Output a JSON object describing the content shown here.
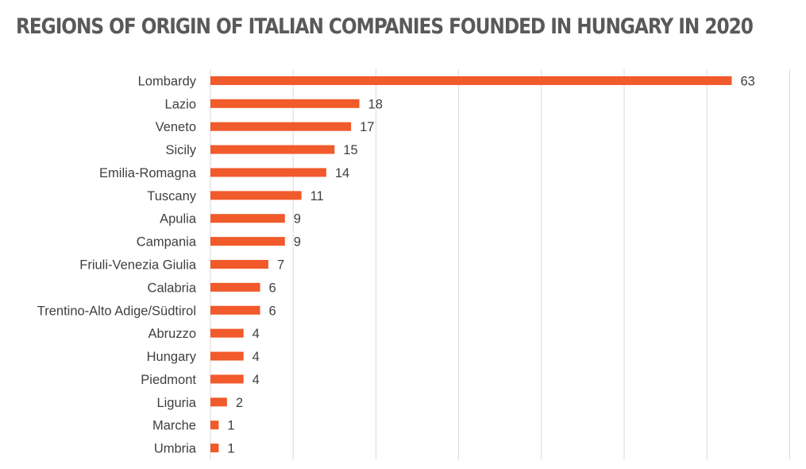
{
  "colors": {
    "bar": "#f15a2b",
    "title": "#595959",
    "grid": "#d9d9d9",
    "text": "#404040"
  },
  "chart_data": {
    "type": "bar",
    "orientation": "horizontal",
    "title": "REGIONS OF ORIGIN OF ITALIAN COMPANIES FOUNDED IN HUNGARY IN 2020",
    "xlabel": "",
    "ylabel": "",
    "categories": [
      "Lombardy",
      "Lazio",
      "Veneto",
      "Sicily",
      "Emilia-Romagna",
      "Tuscany",
      "Apulia",
      "Campania",
      "Friuli-Venezia Giulia",
      "Calabria",
      "Trentino-Alto Adige/Südtirol",
      "Abruzzo",
      "Hungary",
      "Piedmont",
      "Liguria",
      "Marche",
      "Umbria"
    ],
    "values": [
      63,
      18,
      17,
      15,
      14,
      11,
      9,
      9,
      7,
      6,
      6,
      4,
      4,
      4,
      2,
      1,
      1
    ],
    "xlim": [
      0,
      70
    ],
    "grid": true,
    "grid_axis": "x",
    "data_labels": true,
    "legend": false
  }
}
